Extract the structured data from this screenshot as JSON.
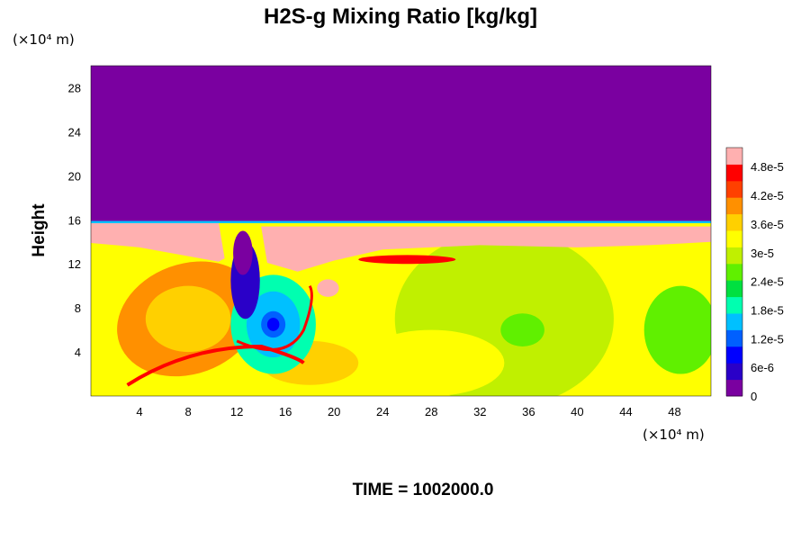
{
  "chart_data": {
    "type": "heatmap",
    "title": "H2S-g Mixing Ratio [kg/kg]",
    "xlabel": "",
    "ylabel": "Height",
    "x_unit": "(×10⁴ m)",
    "y_unit": "(×10⁴ m)",
    "xlim": [
      0,
      51
    ],
    "ylim": [
      0,
      30
    ],
    "x_ticks": [
      4,
      8,
      12,
      16,
      20,
      24,
      28,
      32,
      36,
      40,
      44,
      48
    ],
    "y_ticks": [
      4,
      8,
      12,
      16,
      20,
      24,
      28
    ],
    "colorbar": {
      "min": 0,
      "max": 5.2e-05,
      "tick_labels": [
        "0",
        "6e-6",
        "1.2e-5",
        "1.8e-5",
        "2.4e-5",
        "3e-5",
        "3.6e-5",
        "4.2e-5",
        "4.8e-5"
      ],
      "tick_values": [
        0,
        6e-06,
        1.2e-05,
        1.8e-05,
        2.4e-05,
        3e-05,
        3.6e-05,
        4.2e-05,
        4.8e-05
      ],
      "colors": [
        "#7a00a0",
        "#2a00c8",
        "#0000ff",
        "#0060ff",
        "#00c0ff",
        "#00ffb0",
        "#00e040",
        "#60f000",
        "#c0f000",
        "#ffff00",
        "#ffd000",
        "#ff9000",
        "#ff4000",
        "#ff0000",
        "#ffb0b0"
      ]
    },
    "field_description_values": {
      "upper_layer_value": 0,
      "upper_layer_bottom_height": 15.8,
      "peak_pink_band_heights": [
        12.5,
        15.8
      ]
    },
    "grid": false,
    "legend": "colorbar-right"
  },
  "footer": {
    "time_label": "TIME = 1002000.0"
  }
}
